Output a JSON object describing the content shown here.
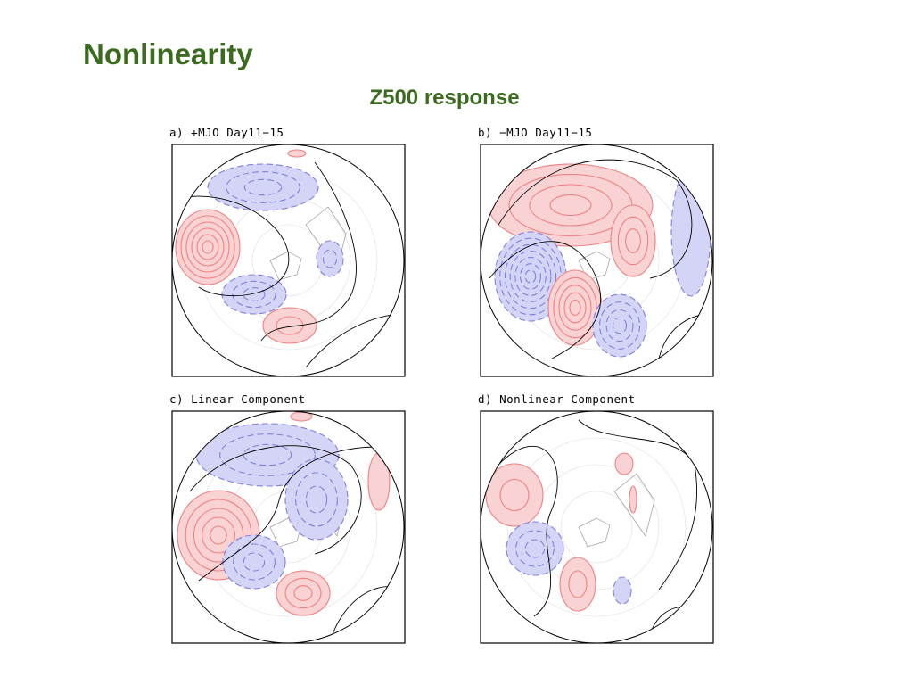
{
  "header": {
    "title": "Nonlinearity",
    "subtitle": "Z500 response"
  },
  "panels": [
    {
      "label": "a) +MJO Day11−15"
    },
    {
      "label": "b) −MJO Day11−15"
    },
    {
      "label": "c) Linear Component"
    },
    {
      "label": "d) Nonlinear Component"
    }
  ]
}
